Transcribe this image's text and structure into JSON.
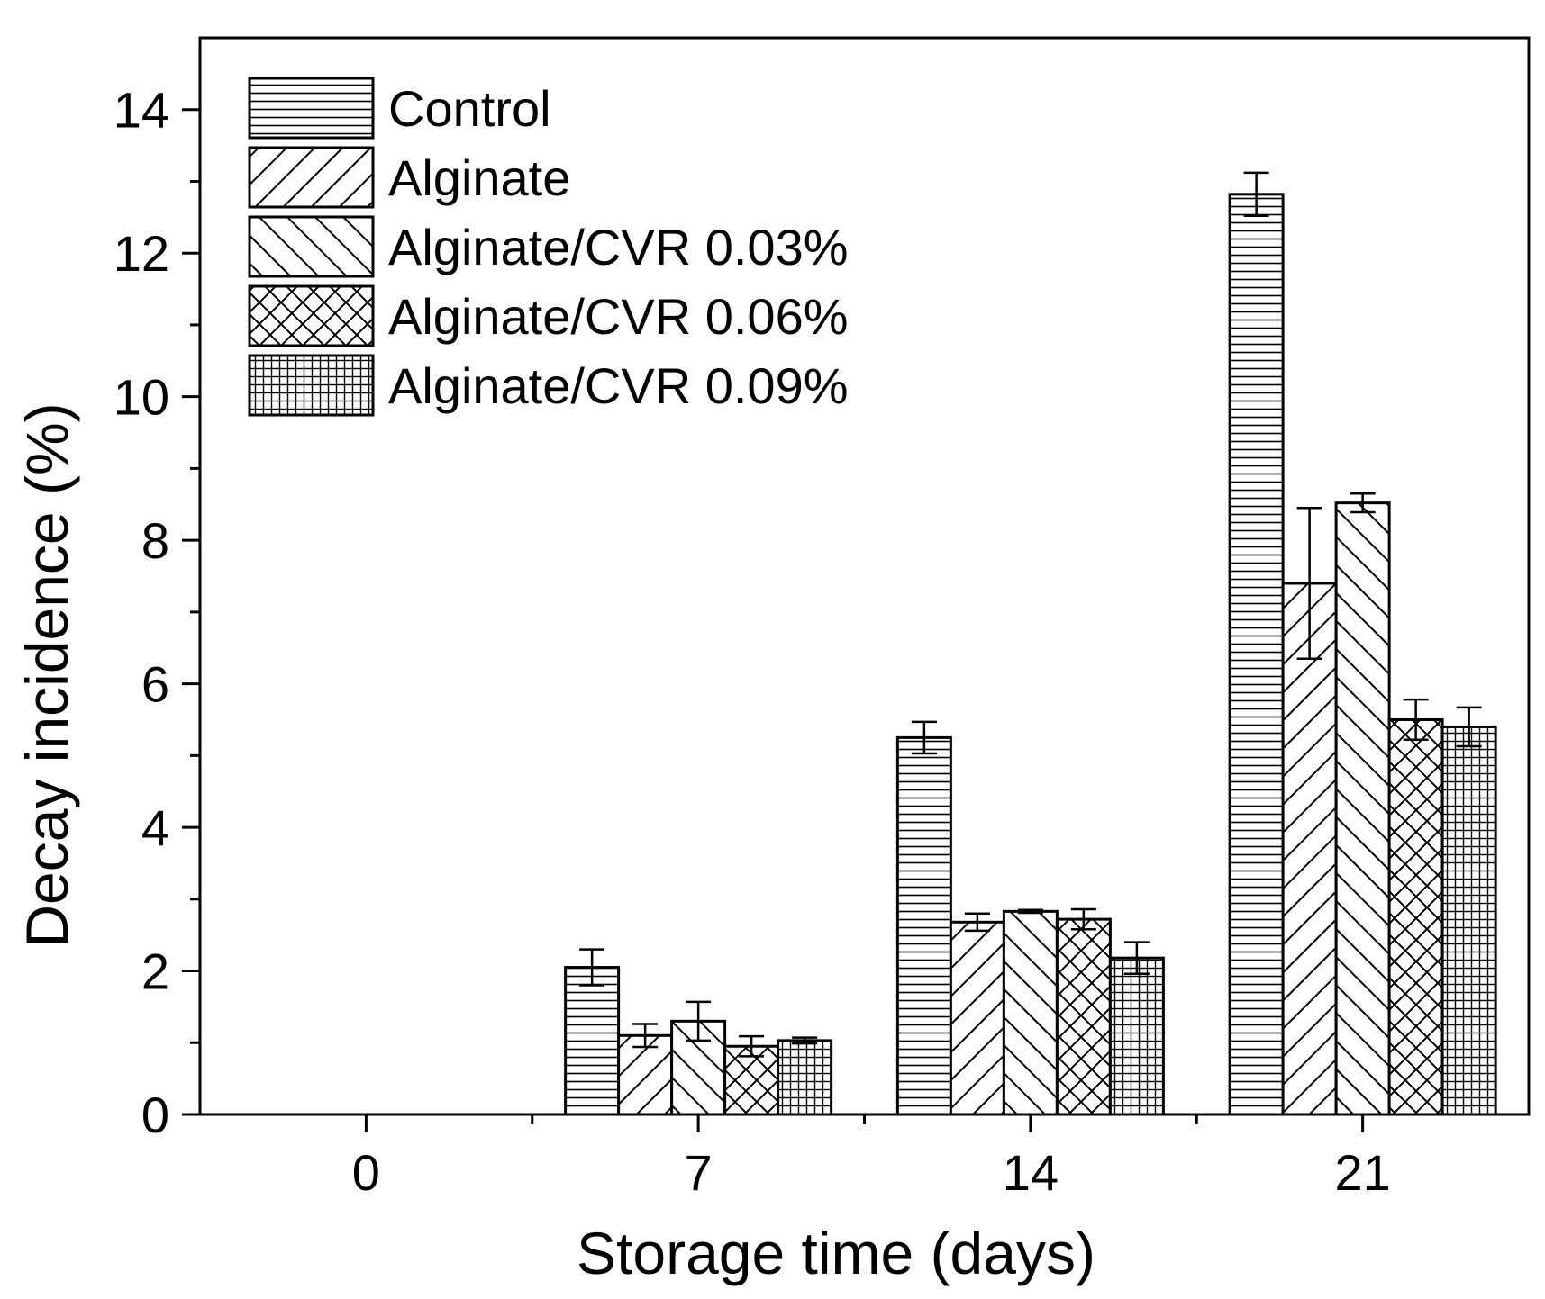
{
  "chart_data": {
    "type": "bar",
    "xlabel": "Storage time (days)",
    "ylabel": "Decay incidence (%)",
    "ylim": [
      0,
      15
    ],
    "yticks": [
      0,
      2,
      4,
      6,
      8,
      10,
      12,
      14
    ],
    "categories": [
      "0",
      "7",
      "14",
      "21"
    ],
    "legend_position": "top-left",
    "series": [
      {
        "name": "Control",
        "pattern": "horizontal",
        "values": [
          0,
          2.05,
          5.25,
          12.82
        ],
        "errors": [
          0,
          0.25,
          0.22,
          0.3
        ]
      },
      {
        "name": "Alginate",
        "pattern": "diagonal-forward",
        "values": [
          0,
          1.1,
          2.68,
          7.4
        ],
        "errors": [
          0,
          0.16,
          0.12,
          1.05
        ]
      },
      {
        "name": "Alginate/CVR 0.03%",
        "pattern": "diagonal-back",
        "values": [
          0,
          1.3,
          2.83,
          8.52
        ],
        "errors": [
          0,
          0.27,
          0.02,
          0.13
        ]
      },
      {
        "name": "Alginate/CVR 0.06%",
        "pattern": "crosshatch",
        "values": [
          0,
          0.95,
          2.72,
          5.5
        ],
        "errors": [
          0,
          0.14,
          0.14,
          0.28
        ]
      },
      {
        "name": "Alginate/CVR 0.09%",
        "pattern": "grid",
        "values": [
          0,
          1.03,
          2.18,
          5.4
        ],
        "errors": [
          0,
          0.04,
          0.22,
          0.27
        ]
      }
    ]
  }
}
